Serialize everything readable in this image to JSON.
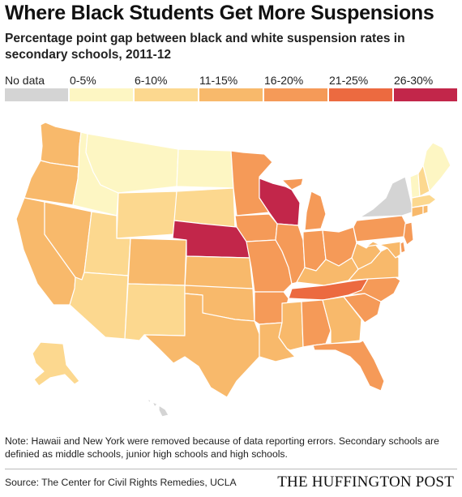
{
  "title": "Where Black Students Get More Suspensions",
  "subtitle": "Percentage point gap between black and white suspension rates in secondary schools, 2011-12",
  "legend": [
    {
      "label": "No data",
      "color": "#d4d4d4"
    },
    {
      "label": "0-5%",
      "color": "#fdf6c3"
    },
    {
      "label": "6-10%",
      "color": "#fcd88f"
    },
    {
      "label": "11-15%",
      "color": "#f8b96b"
    },
    {
      "label": "16-20%",
      "color": "#f59a58"
    },
    {
      "label": "21-25%",
      "color": "#ec6a40"
    },
    {
      "label": "26-30%",
      "color": "#c2264a"
    }
  ],
  "chart_data": {
    "type": "choropleth",
    "region": "United States",
    "metric": "Percentage point gap between black and white suspension rates in secondary schools, 2011-12",
    "states": {
      "WA": "11-15%",
      "OR": "11-15%",
      "CA": "11-15%",
      "NV": "11-15%",
      "ID": "0-5%",
      "MT": "0-5%",
      "WY": "6-10%",
      "UT": "6-10%",
      "AZ": "6-10%",
      "CO": "11-15%",
      "NM": "6-10%",
      "ND": "0-5%",
      "SD": "6-10%",
      "NE": "26-30%",
      "KS": "11-15%",
      "OK": "11-15%",
      "TX": "11-15%",
      "MN": "16-20%",
      "IA": "16-20%",
      "MO": "16-20%",
      "AR": "16-20%",
      "LA": "11-15%",
      "WI": "26-30%",
      "IL": "16-20%",
      "MI": "16-20%",
      "IN": "16-20%",
      "OH": "16-20%",
      "KY": "11-15%",
      "TN": "21-25%",
      "MS": "11-15%",
      "AL": "16-20%",
      "GA": "11-15%",
      "FL": "16-20%",
      "SC": "16-20%",
      "NC": "16-20%",
      "VA": "11-15%",
      "WV": "11-15%",
      "PA": "16-20%",
      "NY": "No data",
      "VT": "0-5%",
      "NH": "6-10%",
      "ME": "0-5%",
      "MA": "6-10%",
      "CT": "11-15%",
      "RI": "11-15%",
      "NJ": "16-20%",
      "DE": "16-20%",
      "MD": "11-15%",
      "AK": "6-10%",
      "HI": "No data"
    }
  },
  "note": "Note: Hawaii and New York were removed because of data reporting errors. Secondary schools are definied as middle schools, junior high schools and high schools.",
  "source": "Source: The Center for Civil Rights Remedies, UCLA",
  "brand": "THE HUFFINGTON POST"
}
